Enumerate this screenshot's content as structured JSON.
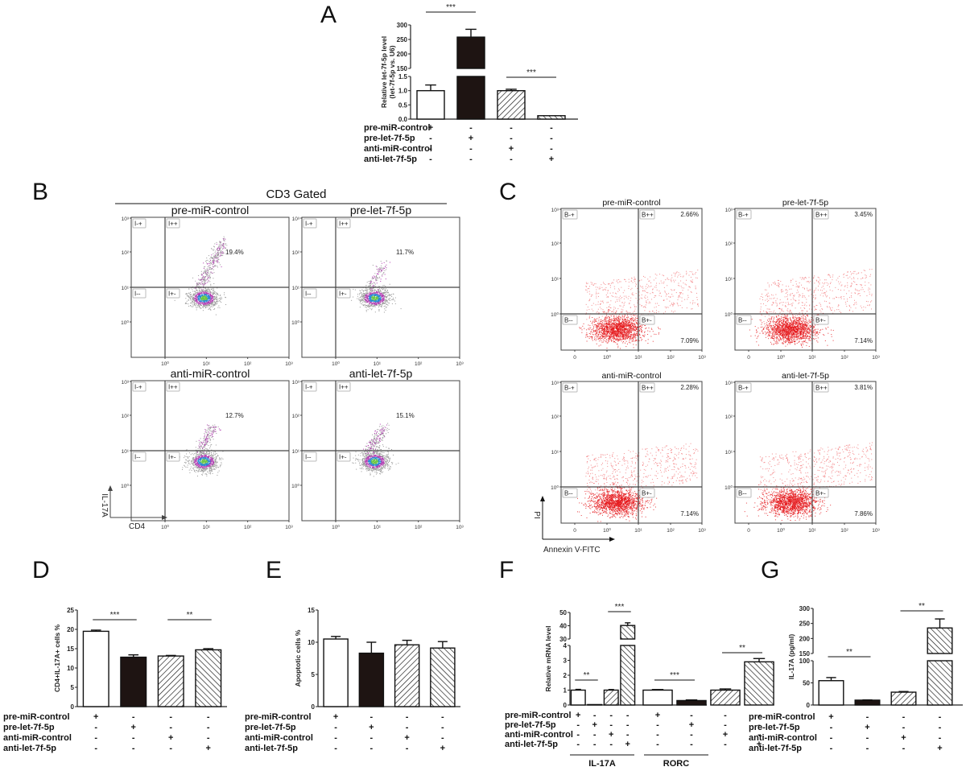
{
  "figure": {
    "panels": [
      "A",
      "B",
      "C",
      "D",
      "E",
      "F",
      "G"
    ],
    "conditions": [
      "pre-miR-control",
      "pre-let-7f-5p",
      "anti-miR-control",
      "anti-let-7f-5p"
    ],
    "condition_matrix": [
      [
        "+",
        "-",
        "-",
        "-"
      ],
      [
        "-",
        "+",
        "-",
        "-"
      ],
      [
        "-",
        "-",
        "+",
        "-"
      ],
      [
        "-",
        "-",
        "-",
        "+"
      ]
    ],
    "bar_styles": [
      "white",
      "black",
      "backslash-hatch",
      "slash-hatch"
    ],
    "colors": {
      "bar_black": "#1e1412",
      "axis": "#222222",
      "dot_red": "#e5191c",
      "gate_line": "#444444"
    }
  },
  "panel_B": {
    "header": "CD3 Gated",
    "x_axis_label": "CD4",
    "y_axis_label": "IL-17A",
    "tick_labels": [
      "10⁰",
      "10¹",
      "10²",
      "10³"
    ],
    "gate_labels": [
      "I-+",
      "I++",
      "I--",
      "I+-"
    ],
    "plots": [
      {
        "title": "pre-miR-control",
        "percent": "19.4%"
      },
      {
        "title": "pre-let-7f-5p",
        "percent": "11.7%"
      },
      {
        "title": "anti-miR-control",
        "percent": "12.7%"
      },
      {
        "title": "anti-let-7f-5p",
        "percent": "15.1%"
      }
    ]
  },
  "panel_C": {
    "x_axis_label": "Annexin  V-FITC",
    "y_axis_label": "PI",
    "x_tick_labels": [
      "0",
      "10⁰",
      "10¹",
      "10²",
      "10³"
    ],
    "y_tick_labels": [
      "10⁰",
      "10¹",
      "10²",
      "10³"
    ],
    "gate_labels": [
      "B-+",
      "B++",
      "B--",
      "B+-"
    ],
    "plots": [
      {
        "title": "pre-miR-control",
        "upper_right": "2.66%",
        "lower_right": "7.09%"
      },
      {
        "title": "pre-let-7f-5p",
        "upper_right": "3.45%",
        "lower_right": "7.14%"
      },
      {
        "title": "anti-miR-control",
        "upper_right": "2.28%",
        "lower_right": "7.14%"
      },
      {
        "title": "anti-let-7f-5p",
        "upper_right": "3.81%",
        "lower_right": "7.86%"
      }
    ]
  },
  "chart_data": [
    {
      "panel": "A",
      "type": "bar",
      "ylabel": "Relative let-7f-5p level (let-7f-5p vs. U6)",
      "broken_axis": {
        "lower_range": [
          0,
          1.5
        ],
        "upper_range": [
          150,
          300
        ]
      },
      "lower_ticks": [
        "0.0",
        "0.5",
        "1.0",
        "1.5"
      ],
      "upper_ticks": [
        "150",
        "200",
        "250",
        "300"
      ],
      "categories": [
        "pre-miR-control",
        "pre-let-7f-5p",
        "anti-miR-control",
        "anti-let-7f-5p"
      ],
      "values": [
        1.0,
        258,
        1.0,
        0.12
      ],
      "errors": [
        0.2,
        27,
        0.05,
        0.0
      ],
      "significance": [
        {
          "from": 0,
          "to": 1,
          "label": "***"
        },
        {
          "from": 2,
          "to": 3,
          "label": "***"
        }
      ]
    },
    {
      "panel": "D",
      "type": "bar",
      "ylabel": "CD4+IL-17A+ cells %",
      "ylim": [
        0,
        25
      ],
      "ticks": [
        "0",
        "5",
        "10",
        "15",
        "20",
        "25"
      ],
      "categories": [
        "pre-miR-control",
        "pre-let-7f-5p",
        "anti-miR-control",
        "anti-let-7f-5p"
      ],
      "values": [
        19.5,
        12.8,
        13.1,
        14.7
      ],
      "errors": [
        0.3,
        0.6,
        0.15,
        0.3
      ],
      "significance": [
        {
          "from": 0,
          "to": 1,
          "label": "***"
        },
        {
          "from": 2,
          "to": 3,
          "label": "**"
        }
      ]
    },
    {
      "panel": "E",
      "type": "bar",
      "ylabel": "Apoptotic cells %",
      "ylim": [
        0,
        15
      ],
      "ticks": [
        "0",
        "5",
        "10",
        "15"
      ],
      "categories": [
        "pre-miR-control",
        "pre-let-7f-5p",
        "anti-miR-control",
        "anti-let-7f-5p"
      ],
      "values": [
        10.5,
        8.3,
        9.6,
        9.1
      ],
      "errors": [
        0.4,
        1.7,
        0.7,
        1.0
      ],
      "significance": []
    },
    {
      "panel": "F",
      "type": "bar",
      "ylabel": "Relative mRNA level",
      "broken_axis": {
        "lower_range": [
          0,
          4
        ],
        "upper_range": [
          30,
          50
        ]
      },
      "lower_ticks": [
        "0",
        "1",
        "2",
        "3",
        "4"
      ],
      "upper_ticks": [
        "30",
        "40",
        "50"
      ],
      "groups": [
        "IL-17A",
        "RORC"
      ],
      "categories": [
        "pre-miR-control",
        "pre-let-7f-5p",
        "anti-miR-control",
        "anti-let-7f-5p"
      ],
      "series": [
        {
          "name": "IL-17A",
          "values": [
            1.0,
            0.03,
            1.0,
            40.2
          ],
          "errors": [
            0.05,
            0.0,
            0.04,
            2.0
          ]
        },
        {
          "name": "RORC",
          "values": [
            1.0,
            0.3,
            1.0,
            2.9
          ],
          "errors": [
            0.04,
            0.04,
            0.08,
            0.22
          ]
        }
      ],
      "significance": [
        {
          "group": "IL-17A",
          "from": 0,
          "to": 1,
          "label": "**"
        },
        {
          "group": "IL-17A",
          "from": 2,
          "to": 3,
          "label": "***"
        },
        {
          "group": "RORC",
          "from": 0,
          "to": 1,
          "label": "***"
        },
        {
          "group": "RORC",
          "from": 2,
          "to": 3,
          "label": "**"
        }
      ]
    },
    {
      "panel": "G",
      "type": "bar",
      "ylabel": "IL-17A (pg/ml)",
      "broken_axis": {
        "lower_range": [
          0,
          100
        ],
        "upper_range": [
          150,
          300
        ]
      },
      "lower_ticks": [
        "0",
        "50",
        "100"
      ],
      "upper_ticks": [
        "150",
        "200",
        "250",
        "300"
      ],
      "categories": [
        "pre-miR-control",
        "pre-let-7f-5p",
        "anti-miR-control",
        "anti-let-7f-5p"
      ],
      "values": [
        55,
        11,
        29,
        235
      ],
      "errors": [
        7,
        0.5,
        1.5,
        30
      ],
      "significance": [
        {
          "from": 0,
          "to": 1,
          "label": "**"
        },
        {
          "from": 2,
          "to": 3,
          "label": "**"
        }
      ]
    }
  ]
}
